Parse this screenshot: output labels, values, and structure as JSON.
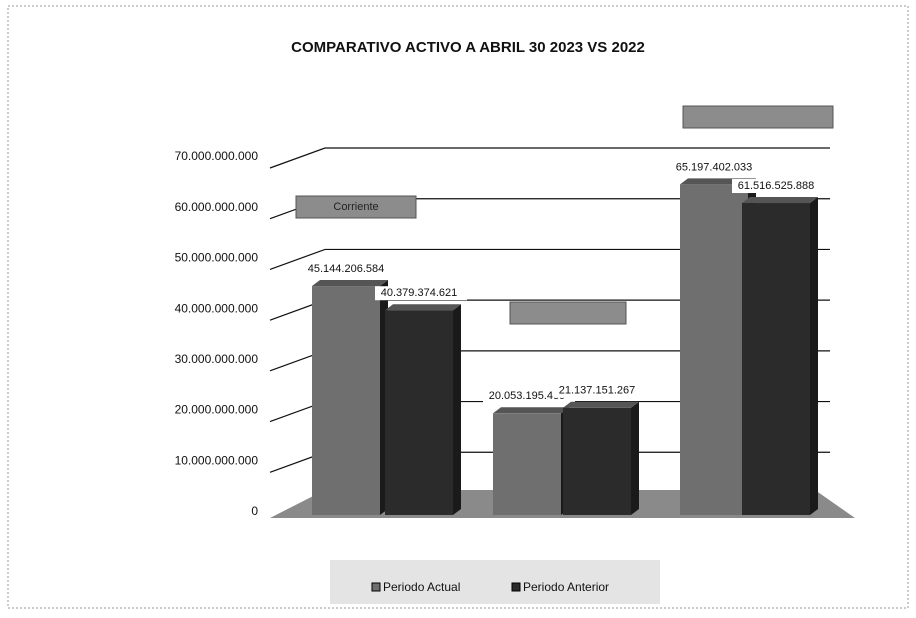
{
  "chart_data": {
    "type": "bar",
    "title": "COMPARATIVO ACTIVO A ABRIL 30  2023 VS 2022",
    "categories": [
      "Corriente",
      null,
      null
    ],
    "series": [
      {
        "name": "Periodo Actual",
        "color": "#6f6f6f",
        "values": [
          45144206584,
          20053195439,
          65197402033
        ],
        "value_labels": [
          "45.144.206.584",
          "20.053.195.439",
          "65.197.402.033"
        ]
      },
      {
        "name": "Periodo Anterior",
        "color": "#2b2b2b",
        "values": [
          40379374621,
          21137151267,
          61516525888
        ],
        "value_labels": [
          "40.379.374.621",
          "21.137.151.267",
          "61.516.525.888"
        ]
      }
    ],
    "ylim": [
      0,
      70000000000
    ],
    "yticks": [
      0,
      {
        "value": 10000000000,
        "label": "10.000.000.000"
      },
      {
        "value": 20000000000,
        "label": "20.000.000.000"
      },
      {
        "value": 30000000000,
        "label": "30.000.000.000"
      },
      {
        "value": 40000000000,
        "label": "40.000.000.000"
      },
      {
        "value": 50000000000,
        "label": "50.000.000.000"
      },
      {
        "value": 60000000000,
        "label": "60.000.000.000"
      },
      {
        "value": 70000000000,
        "label": "70.000.000.000"
      }
    ],
    "grid": true,
    "legend": "bottom"
  }
}
